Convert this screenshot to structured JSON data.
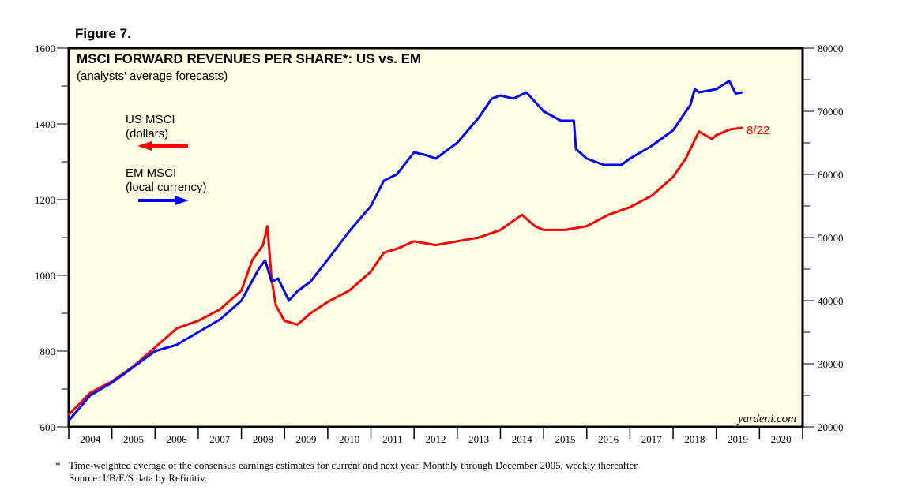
{
  "figure_label": "Figure 7.",
  "chart_data": {
    "type": "line",
    "title": "MSCI FORWARD REVENUES PER SHARE*: US vs. EM",
    "subtitle": "(analysts' average forecasts)",
    "x_ticks": [
      "2004",
      "2005",
      "2006",
      "2007",
      "2008",
      "2009",
      "2010",
      "2011",
      "2012",
      "2013",
      "2014",
      "2015",
      "2016",
      "2017",
      "2018",
      "2019",
      "2020"
    ],
    "xlim": [
      2004,
      2021
    ],
    "y_left": {
      "ylim": [
        600,
        1600
      ],
      "ticks": [
        "600",
        "800",
        "1000",
        "1200",
        "1400",
        "1600"
      ]
    },
    "y_right": {
      "ylim": [
        20000,
        80000
      ],
      "ticks": [
        "20000",
        "30000",
        "40000",
        "50000",
        "60000",
        "70000",
        "80000"
      ]
    },
    "series": [
      {
        "name": "US MSCI",
        "unit": "(dollars)",
        "axis": "left",
        "color": "#ff0000",
        "x": [
          2004.0,
          2004.5,
          2005.0,
          2005.5,
          2006.0,
          2006.5,
          2007.0,
          2007.5,
          2008.0,
          2008.25,
          2008.5,
          2008.6,
          2008.7,
          2008.8,
          2009.0,
          2009.3,
          2009.6,
          2010.0,
          2010.5,
          2011.0,
          2011.3,
          2011.6,
          2012.0,
          2012.5,
          2013.0,
          2013.5,
          2014.0,
          2014.5,
          2014.8,
          2015.0,
          2015.5,
          2016.0,
          2016.5,
          2017.0,
          2017.5,
          2018.0,
          2018.3,
          2018.6,
          2018.9,
          2019.0,
          2019.3,
          2019.6
        ],
        "y": [
          632,
          690,
          720,
          760,
          810,
          860,
          880,
          910,
          960,
          1040,
          1080,
          1130,
          990,
          920,
          880,
          870,
          900,
          930,
          960,
          1010,
          1060,
          1070,
          1090,
          1080,
          1090,
          1100,
          1120,
          1160,
          1130,
          1120,
          1120,
          1130,
          1160,
          1180,
          1210,
          1260,
          1310,
          1380,
          1360,
          1370,
          1385,
          1390
        ]
      },
      {
        "name": "EM MSCI",
        "unit": "(local currency)",
        "axis": "right",
        "color": "#0000ff",
        "x": [
          2004.0,
          2004.5,
          2005.0,
          2005.5,
          2006.0,
          2006.5,
          2007.0,
          2007.5,
          2008.0,
          2008.4,
          2008.55,
          2008.7,
          2008.85,
          2009.1,
          2009.3,
          2009.6,
          2010.0,
          2010.5,
          2011.0,
          2011.3,
          2011.6,
          2012.0,
          2012.3,
          2012.5,
          2012.8,
          2013.0,
          2013.5,
          2013.8,
          2014.0,
          2014.3,
          2014.6,
          2015.0,
          2015.4,
          2015.7,
          2015.75,
          2016.0,
          2016.4,
          2016.8,
          2017.0,
          2017.5,
          2018.0,
          2018.4,
          2018.5,
          2018.6,
          2019.0,
          2019.3,
          2019.45,
          2019.6
        ],
        "y": [
          21000,
          25000,
          27000,
          29500,
          32000,
          33000,
          35000,
          37000,
          40000,
          45000,
          46400,
          43000,
          43500,
          40000,
          41500,
          43000,
          46500,
          51000,
          55000,
          59000,
          60000,
          63500,
          63000,
          62500,
          64000,
          65000,
          69000,
          72000,
          72500,
          72000,
          73000,
          70000,
          68500,
          68500,
          64000,
          62500,
          61500,
          61500,
          62500,
          64500,
          67000,
          71000,
          73500,
          73000,
          73500,
          74800,
          72800,
          73000
        ]
      }
    ],
    "annotations": {
      "last_date": "8/22",
      "source_mark": "yardeni.com"
    }
  },
  "footnote": {
    "star": "*",
    "line1": "Time-weighted average of the consensus earnings estimates for current and next year. Monthly through December 2005, weekly thereafter.",
    "line2": "Source: I/B/E/S data by Refinitiv."
  }
}
